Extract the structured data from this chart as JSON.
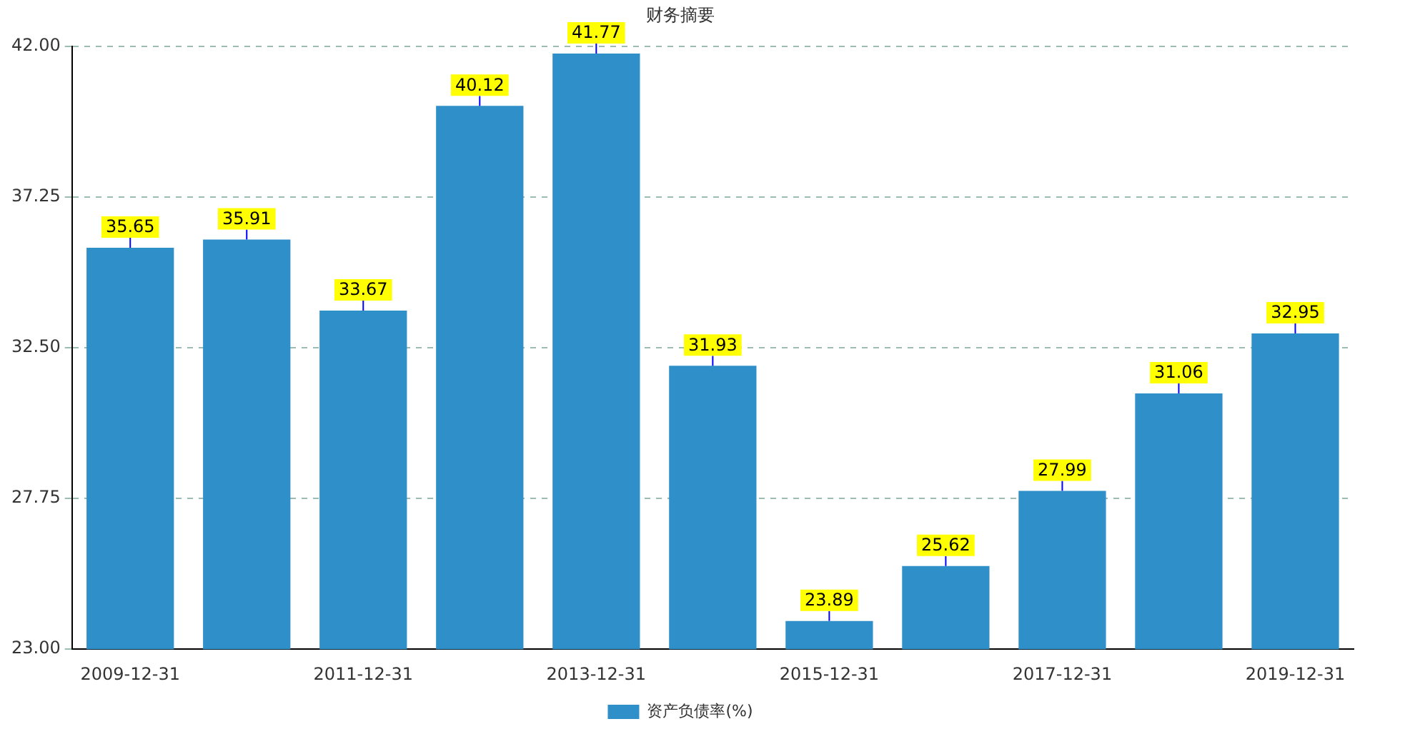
{
  "chart_data": {
    "type": "bar",
    "title": "财务摘要",
    "categories": [
      "2009-12-31",
      null,
      "2011-12-31",
      null,
      "2013-12-31",
      null,
      "2015-12-31",
      null,
      "2017-12-31",
      null,
      "2019-12-31"
    ],
    "series": [
      {
        "name": "资产负债率(%)",
        "color": "#2e8fc9",
        "values": [
          35.65,
          35.91,
          33.67,
          40.12,
          41.77,
          31.93,
          23.89,
          25.62,
          27.99,
          31.06,
          32.95
        ]
      }
    ],
    "ylim": [
      23,
      42
    ],
    "yticks": [
      {
        "value": 23,
        "label": "23.00"
      },
      {
        "value": 27.75,
        "label": "27.75"
      },
      {
        "value": 32.5,
        "label": "32.50"
      },
      {
        "value": 37.25,
        "label": "37.25"
      },
      {
        "value": 42,
        "label": "42.00"
      }
    ],
    "grid": "y",
    "legend": "bottom",
    "data_labels": true
  }
}
